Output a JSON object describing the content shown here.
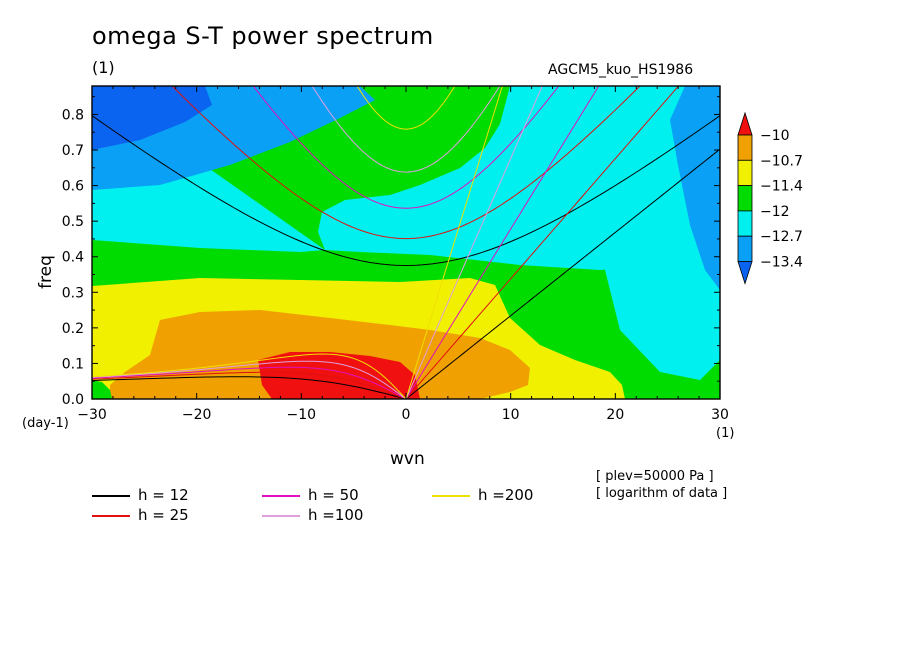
{
  "header": {
    "title": "omega S-T power spectrum",
    "unit_top": "(1)",
    "run_label": "AGCM5_kuo_HS1986"
  },
  "notes": {
    "plev": "[ plev=50000 Pa ]",
    "log": "[ logarithm of data ]"
  },
  "chart_data": {
    "type": "heatmap",
    "title": "omega S-T power spectrum",
    "xlabel": "wvn",
    "ylabel": "freq",
    "x_unit": "(1)",
    "y_unit": "(day-1)",
    "xlim": [
      -30,
      30
    ],
    "ylim": [
      0,
      0.88
    ],
    "x_ticks": [
      -30,
      -20,
      -10,
      0,
      10,
      20,
      30
    ],
    "y_ticks": [
      0.0,
      0.1,
      0.2,
      0.3,
      0.4,
      0.5,
      0.6,
      0.7,
      0.8
    ],
    "x_tick_labels": [
      "−30",
      "−20",
      "−10",
      "0",
      "10",
      "20",
      "30"
    ],
    "y_tick_labels": [
      "0.0",
      "0.1",
      "0.2",
      "0.3",
      "0.4",
      "0.5",
      "0.6",
      "0.7",
      "0.8"
    ],
    "colorbar": {
      "levels": [
        -13.4,
        -12.7,
        -12,
        -11.4,
        -10.7,
        -10
      ],
      "labels": [
        "−10",
        "−10.7",
        "−11.4",
        "−12",
        "−12.7",
        "−13.4"
      ],
      "colors": [
        "#0a64f0",
        "#0aa0f5",
        "#00f0f0",
        "#00dc00",
        "#f0f000",
        "#f0a000",
        "#f01010"
      ]
    },
    "dispersion_curves": [
      {
        "name": "h = 12",
        "color": "#000000",
        "h": 12
      },
      {
        "name": "h = 25",
        "color": "#e01010",
        "h": 25
      },
      {
        "name": "h = 50",
        "color": "#e010c0",
        "h": 50
      },
      {
        "name": "h =100",
        "color": "#e0a0e0",
        "h": 100
      },
      {
        "name": "h =200",
        "color": "#f0e000",
        "h": 200
      }
    ],
    "legend_placement": "bottom"
  }
}
